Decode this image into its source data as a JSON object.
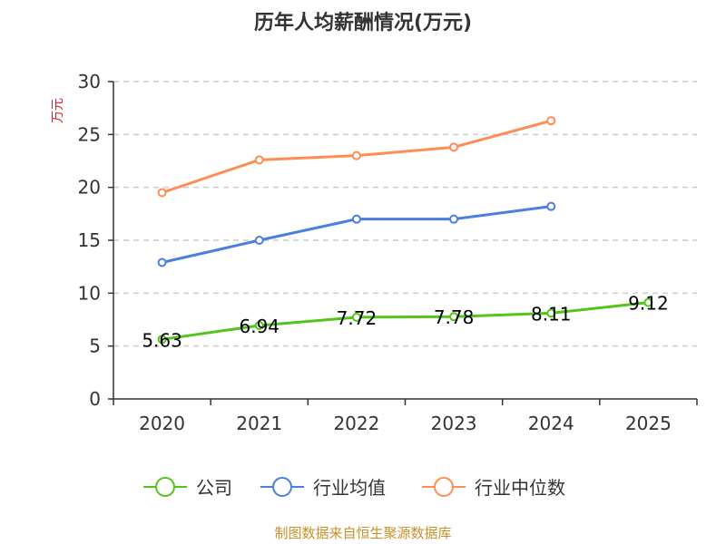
{
  "chart_data": {
    "type": "line",
    "title": "历年人均薪酬情况(万元)",
    "ylabel": "万元",
    "ylim": [
      0,
      30
    ],
    "yticks": [
      0,
      5,
      10,
      15,
      20,
      25,
      30
    ],
    "grid": true,
    "legend_position": "bottom",
    "categories": [
      "2020",
      "2021",
      "2022",
      "2023",
      "2024",
      "2025"
    ],
    "series": [
      {
        "name": "公司",
        "color": "#52c41a",
        "values": [
          5.63,
          6.94,
          7.72,
          7.78,
          8.11,
          9.12
        ],
        "labels": [
          "5.63",
          "6.94",
          "7.72",
          "7.78",
          "8.11",
          "9.12"
        ]
      },
      {
        "name": "行业均值",
        "color": "#4a7fe0",
        "values": [
          12.9,
          15.0,
          17.0,
          17.0,
          18.2,
          null
        ]
      },
      {
        "name": "行业中位数",
        "color": "#ff8c55",
        "values": [
          19.5,
          22.6,
          23.0,
          23.8,
          26.3,
          null
        ]
      }
    ]
  },
  "source": "制图数据来自恒生聚源数据库"
}
